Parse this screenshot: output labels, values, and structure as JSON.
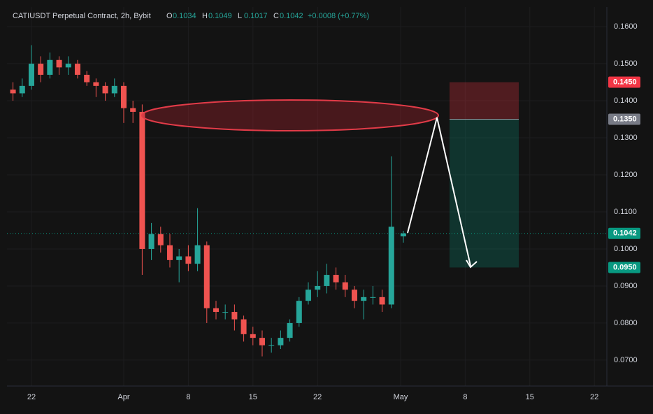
{
  "chart_data": {
    "type": "candlestick",
    "title": "CATIUSDT Perpetual Contract, 2h, Bybit",
    "ohlc_labels": [
      "O",
      "H",
      "L",
      "C"
    ],
    "change": "+0.0008 (+0.77%)",
    "up_color": "#26a69a",
    "down_color": "#ef5350",
    "grid": true,
    "xlim": [
      -2.65,
      62.35
    ],
    "xticks": [
      {
        "value": 0,
        "label": "22"
      },
      {
        "value": 10,
        "label": "Apr"
      },
      {
        "value": 17,
        "label": "8"
      },
      {
        "value": 24,
        "label": "15"
      },
      {
        "value": 31,
        "label": "22"
      },
      {
        "value": 40,
        "label": "May"
      },
      {
        "value": 47,
        "label": "8"
      },
      {
        "value": 54,
        "label": "15"
      },
      {
        "value": 61,
        "label": "22"
      }
    ],
    "ylim": [
      0.063,
      0.1653
    ],
    "yticks": [
      {
        "value": 0.16,
        "label": "0.1600"
      },
      {
        "value": 0.15,
        "label": "0.1500"
      },
      {
        "value": 0.14,
        "label": "0.1400"
      },
      {
        "value": 0.13,
        "label": "0.1300"
      },
      {
        "value": 0.12,
        "label": "0.1200"
      },
      {
        "value": 0.11,
        "label": "0.1100"
      },
      {
        "value": 0.1,
        "label": "0.1000"
      },
      {
        "value": 0.09,
        "label": "0.0900"
      },
      {
        "value": 0.08,
        "label": "0.0800"
      },
      {
        "value": 0.07,
        "label": "0.0700"
      }
    ],
    "x": [
      -2,
      -1,
      0,
      1,
      2,
      3,
      4,
      5,
      6,
      7,
      8,
      9,
      10,
      11,
      12,
      13,
      14,
      15,
      16,
      17,
      18,
      19,
      20,
      21,
      22,
      23,
      24,
      25,
      26,
      27,
      28,
      29,
      30,
      31,
      32,
      33,
      34,
      35,
      36,
      37,
      38,
      39,
      40.3
    ],
    "open": [
      0.143,
      0.142,
      0.144,
      0.15,
      0.147,
      0.151,
      0.149,
      0.15,
      0.147,
      0.145,
      0.144,
      0.142,
      0.144,
      0.138,
      0.137,
      0.1,
      0.104,
      0.101,
      0.097,
      0.098,
      0.096,
      0.101,
      0.084,
      0.083,
      0.083,
      0.081,
      0.077,
      0.076,
      0.074,
      0.074,
      0.076,
      0.08,
      0.086,
      0.089,
      0.09,
      0.093,
      0.091,
      0.089,
      0.086,
      0.087,
      0.087,
      0.085,
      0.1034
    ],
    "high": [
      0.145,
      0.146,
      0.155,
      0.152,
      0.153,
      0.152,
      0.152,
      0.151,
      0.148,
      0.146,
      0.145,
      0.146,
      0.145,
      0.14,
      0.139,
      0.107,
      0.106,
      0.104,
      0.1,
      0.101,
      0.111,
      0.102,
      0.086,
      0.085,
      0.085,
      0.082,
      0.079,
      0.078,
      0.076,
      0.078,
      0.081,
      0.087,
      0.091,
      0.094,
      0.096,
      0.095,
      0.093,
      0.09,
      0.089,
      0.09,
      0.089,
      0.125,
      0.1049
    ],
    "low": [
      0.14,
      0.141,
      0.143,
      0.145,
      0.146,
      0.147,
      0.147,
      0.146,
      0.144,
      0.141,
      0.14,
      0.141,
      0.134,
      0.134,
      0.093,
      0.097,
      0.099,
      0.095,
      0.091,
      0.094,
      0.094,
      0.08,
      0.081,
      0.081,
      0.078,
      0.075,
      0.074,
      0.071,
      0.072,
      0.073,
      0.075,
      0.079,
      0.085,
      0.087,
      0.088,
      0.089,
      0.087,
      0.084,
      0.081,
      0.085,
      0.083,
      0.084,
      0.1017
    ],
    "close": [
      0.142,
      0.144,
      0.15,
      0.147,
      0.151,
      0.149,
      0.15,
      0.147,
      0.145,
      0.144,
      0.142,
      0.144,
      0.138,
      0.137,
      0.1,
      0.104,
      0.101,
      0.097,
      0.098,
      0.096,
      0.101,
      0.084,
      0.083,
      0.083,
      0.081,
      0.077,
      0.076,
      0.074,
      0.074,
      0.076,
      0.08,
      0.086,
      0.089,
      0.09,
      0.093,
      0.091,
      0.089,
      0.086,
      0.087,
      0.087,
      0.085,
      0.106,
      0.1042
    ],
    "price_labels": [
      {
        "value": 0.145,
        "label": "0.1450",
        "color": "#f23645"
      },
      {
        "value": 0.135,
        "label": "0.1350",
        "color": "#787b86"
      },
      {
        "value": 0.1042,
        "label": "0.1042",
        "color": "#089981"
      },
      {
        "value": 0.095,
        "label": "0.0950",
        "color": "#089981"
      }
    ]
  }
}
